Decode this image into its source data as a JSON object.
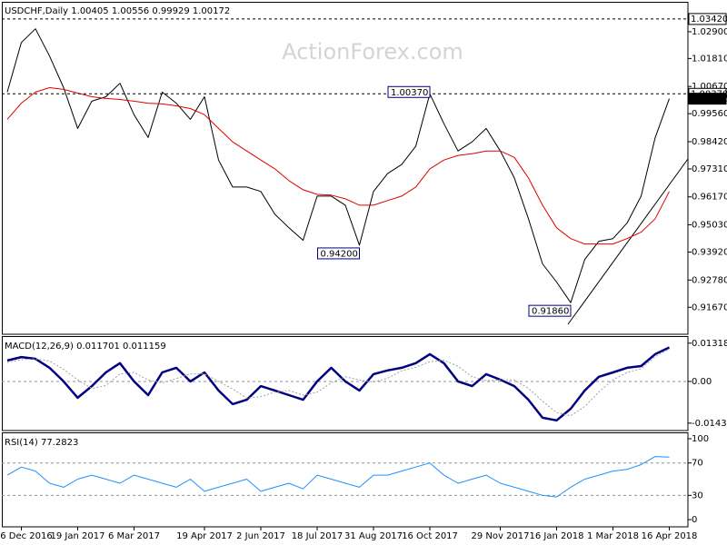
{
  "chart_data": [
    {
      "type": "line",
      "title": "USDCHF,Daily  1.00405 1.00556 0.99929 1.00172",
      "watermark": "ActionForex.com",
      "ylim": [
        0.9057,
        1.0412
      ],
      "yticks": [
        {
          "value": 1.029,
          "label": "1.02900"
        },
        {
          "value": 1.0181,
          "label": "1.01810"
        },
        {
          "value": 1.0067,
          "label": "1.00670"
        },
        {
          "value": 0.9956,
          "label": "0.99560"
        },
        {
          "value": 0.9842,
          "label": "0.98420"
        },
        {
          "value": 0.9731,
          "label": "0.97310"
        },
        {
          "value": 0.9617,
          "label": "0.96170"
        },
        {
          "value": 0.9503,
          "label": "0.95030"
        },
        {
          "value": 0.9392,
          "label": "0.93920"
        },
        {
          "value": 0.9278,
          "label": "0.92780"
        },
        {
          "value": 0.9167,
          "label": "0.91670"
        }
      ],
      "grid": false,
      "series": [
        {
          "color": "#000000",
          "width": 1,
          "values": [
            1.0044,
            1.0246,
            1.0302,
            1.0191,
            1.0062,
            0.9896,
            1.0007,
            1.0025,
            1.008,
            0.9952,
            0.9859,
            1.0044,
            0.9999,
            0.9933,
            1.0025,
            0.9767,
            0.9657,
            0.9657,
            0.9639,
            0.9546,
            0.9491,
            0.944,
            0.962,
            0.962,
            0.9583,
            0.942,
            0.9639,
            0.9712,
            0.9749,
            0.9823,
            1.0037,
            0.9915,
            0.9804,
            0.9841,
            0.9896,
            0.9804,
            0.9694,
            0.9528,
            0.9344,
            0.927,
            0.9186,
            0.9362,
            0.9436,
            0.9447,
            0.951,
            0.962,
            0.9859,
            1.00172
          ]
        },
        {
          "color": "#e00000",
          "width": 1,
          "values": [
            0.9933,
            0.9999,
            1.0044,
            1.0062,
            1.0055,
            1.004,
            1.0025,
            1.0018,
            1.0014,
            1.0007,
            0.9999,
            0.9996,
            0.9988,
            0.9977,
            0.9952,
            0.9896,
            0.9841,
            0.9804,
            0.9767,
            0.9731,
            0.9683,
            0.9646,
            0.9627,
            0.9624,
            0.9609,
            0.9583,
            0.9583,
            0.9602,
            0.962,
            0.9657,
            0.9731,
            0.9767,
            0.9786,
            0.9793,
            0.9804,
            0.9804,
            0.9778,
            0.9694,
            0.9583,
            0.9491,
            0.9447,
            0.9425,
            0.9425,
            0.9425,
            0.9447,
            0.9473,
            0.9528,
            0.9639
          ]
        }
      ],
      "markers": [
        {
          "value": 1.0342,
          "label": "1.03420",
          "style": "dashed"
        },
        {
          "value": 1.0037,
          "label": "1.00370",
          "style": "dashed"
        },
        {
          "value": 1.00172,
          "label": "1.00172",
          "style": "current"
        }
      ],
      "annotations": [
        {
          "value": 1.0037,
          "label": "1.00370"
        },
        {
          "value": 0.942,
          "label": "0.94200"
        },
        {
          "value": 0.9186,
          "label": "0.91860"
        }
      ]
    },
    {
      "type": "line",
      "title": "MACD(12,26,9) 0.011701 0.011159",
      "ylim": [
        -0.0169,
        0.0153
      ],
      "yticks": [
        -0.014339,
        {
          "value": 0,
          "label": "0.00"
        },
        0.013184
      ],
      "grid": true,
      "series": [
        {
          "color": "#000080",
          "width": 2.5,
          "values": [
            0.0072,
            0.0084,
            0.0078,
            0.0047,
            0,
            -0.0056,
            -0.0016,
            0.0031,
            0.0063,
            0,
            -0.0047,
            0.0031,
            0.0047,
            0,
            0.0031,
            -0.0031,
            -0.0078,
            -0.0063,
            -0.0016,
            -0.0031,
            -0.0047,
            -0.0063,
            0,
            0.0047,
            0,
            -0.0031,
            0.0025,
            0.0038,
            0.0047,
            0.0063,
            0.0094,
            0.0063,
            0,
            -0.0016,
            0.0025,
            0.0006,
            -0.0016,
            -0.0063,
            -0.0125,
            -0.0134,
            -0.0094,
            -0.0031,
            0.0016,
            0.0031,
            0.0047,
            0.0053,
            0.0094,
            0.0117
          ]
        },
        {
          "color": "#a0a0a0",
          "width": 1,
          "style": "dotted",
          "values": [
            0.0065,
            0.0075,
            0.0078,
            0.007,
            0.0042,
            0.0005,
            -0.0024,
            -0.0014,
            0.0026,
            0.0031,
            0.0005,
            -0.0005,
            0.001,
            0.0026,
            0.0026,
            0,
            -0.0026,
            -0.0057,
            -0.0052,
            -0.0037,
            -0.0031,
            -0.0047,
            -0.0037,
            -0.0005,
            0.0016,
            0.0005,
            -0.0002,
            0.0011,
            0.0037,
            0.0049,
            0.0068,
            0.0073,
            0.0052,
            0.0016,
            0.0003,
            0.0005,
            0.0005,
            -0.0024,
            -0.0068,
            -0.0107,
            -0.0118,
            -0.0086,
            -0.0036,
            0.0005,
            0.0031,
            0.0044,
            0.0085,
            0.0112
          ]
        }
      ]
    },
    {
      "type": "line",
      "title": "RSI(14) 77.2823",
      "ylim": [
        -8.9,
        106.7
      ],
      "yticks": [
        0,
        30,
        70,
        100
      ],
      "grid": true,
      "categories": [
        null,
        "6 Dec 2016",
        null,
        null,
        null,
        "19 Jan 2017",
        null,
        null,
        null,
        "6 Mar 2017",
        null,
        null,
        null,
        null,
        "19 Apr 2017",
        null,
        null,
        null,
        "2 Jun 2017",
        null,
        null,
        null,
        "18 Jul 2017",
        null,
        null,
        null,
        "31 Aug 2017",
        null,
        null,
        null,
        "16 Oct 2017",
        null,
        null,
        null,
        null,
        "29 Nov 2017",
        null,
        null,
        null,
        "16 Jan 2018",
        null,
        null,
        null,
        "1 Mar 2018",
        null,
        null,
        null,
        "16 Apr 2018"
      ],
      "series": [
        {
          "color": "#1e90ff",
          "width": 1,
          "values": [
            55,
            65,
            60,
            45,
            40,
            50,
            55,
            50,
            45,
            55,
            50,
            45,
            40,
            50,
            35,
            40,
            45,
            50,
            35,
            40,
            45,
            38,
            55,
            50,
            45,
            40,
            55,
            55,
            60,
            65,
            70,
            55,
            45,
            50,
            55,
            45,
            40,
            35,
            30,
            28,
            40,
            50,
            55,
            60,
            62,
            68,
            78,
            77.2823
          ]
        }
      ]
    }
  ]
}
